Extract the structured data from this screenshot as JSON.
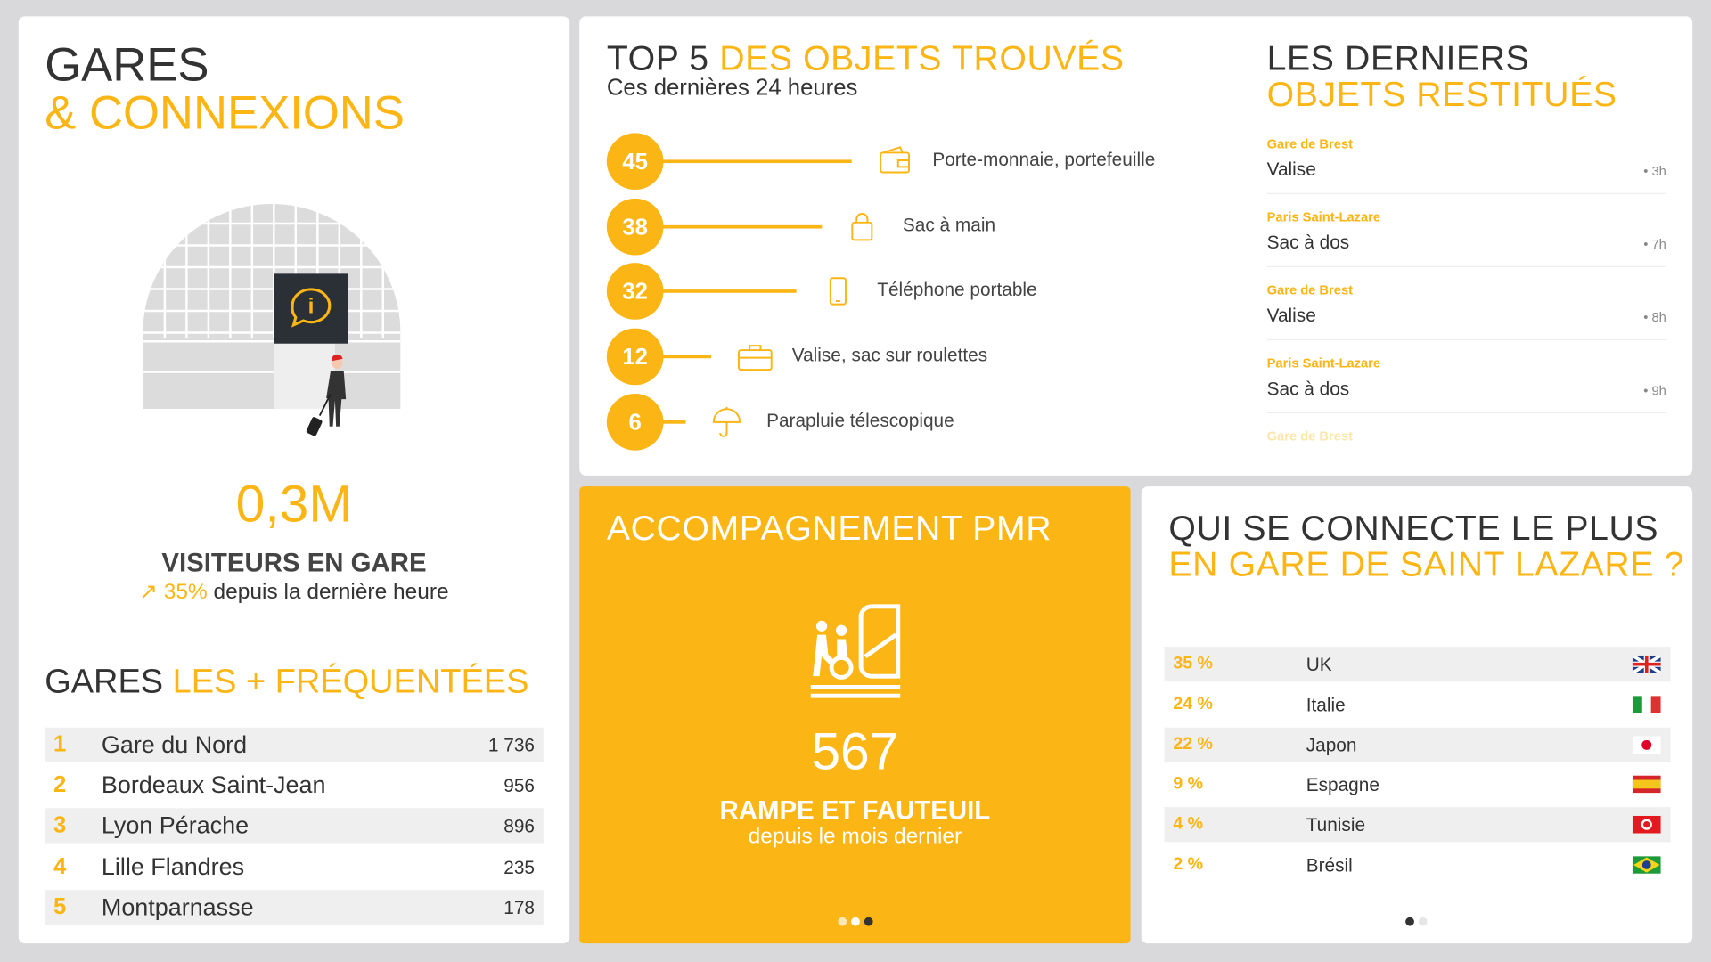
{
  "gares": {
    "title": "GARES",
    "title_accent": "& CONNEXIONS",
    "stat": "0,3M",
    "stat_label": "VISITEURS EN GARE",
    "trend_value": "35%",
    "trend_text": "depuis la dernière heure"
  },
  "ranking": {
    "title": "GARES",
    "title_accent": "LES + FRÉQUENTÉES",
    "rows": [
      {
        "rank": "1",
        "name": "Gare du Nord",
        "count": "1 736"
      },
      {
        "rank": "2",
        "name": "Bordeaux Saint-Jean",
        "count": "956"
      },
      {
        "rank": "3",
        "name": "Lyon Pérache",
        "count": "896"
      },
      {
        "rank": "4",
        "name": "Lille Flandres",
        "count": "235"
      },
      {
        "rank": "5",
        "name": "Montparnasse",
        "count": "178"
      }
    ]
  },
  "top5": {
    "title": "TOP 5",
    "title_accent": "DES OBJETS TROUVÉS",
    "subtitle": "Ces dernières 24 heures",
    "items": [
      {
        "value": 45,
        "label": "Porte-monnaie, portefeuille"
      },
      {
        "value": 38,
        "label": "Sac à main"
      },
      {
        "value": 32,
        "label": "Téléphone portable"
      },
      {
        "value": 12,
        "label": "Valise, sac sur roulettes"
      },
      {
        "value": 6,
        "label": "Parapluie télescopique"
      }
    ]
  },
  "restitues": {
    "title": "LES DERNIERS",
    "title_accent": "OBJETS RESTITUÉS",
    "items": [
      {
        "station": "Gare de Brest",
        "object": "Valise",
        "time": "• 3h"
      },
      {
        "station": "Paris Saint-Lazare",
        "object": "Sac à dos",
        "time": "• 7h"
      },
      {
        "station": "Gare de Brest",
        "object": "Valise",
        "time": "• 8h"
      },
      {
        "station": "Paris Saint-Lazare",
        "object": "Sac à dos",
        "time": "• 9h"
      },
      {
        "station": "Gare de Brest"
      }
    ]
  },
  "pmr": {
    "title": "ACCOMPAGNEMENT PMR",
    "value": "567",
    "label": "RAMPE ET FAUTEUIL",
    "sublabel": "depuis le mois dernier"
  },
  "connect": {
    "title": "QUI SE CONNECTE LE PLUS",
    "title_accent": "EN GARE DE SAINT LAZARE ?",
    "rows": [
      {
        "share": "35 %",
        "country": "UK"
      },
      {
        "share": "24 %",
        "country": "Italie"
      },
      {
        "share": "22 %",
        "country": "Japon"
      },
      {
        "share": "9 %",
        "country": "Espagne"
      },
      {
        "share": "4 %",
        "country": "Tunisie"
      },
      {
        "share": "2 %",
        "country": "Brésil"
      }
    ]
  }
}
